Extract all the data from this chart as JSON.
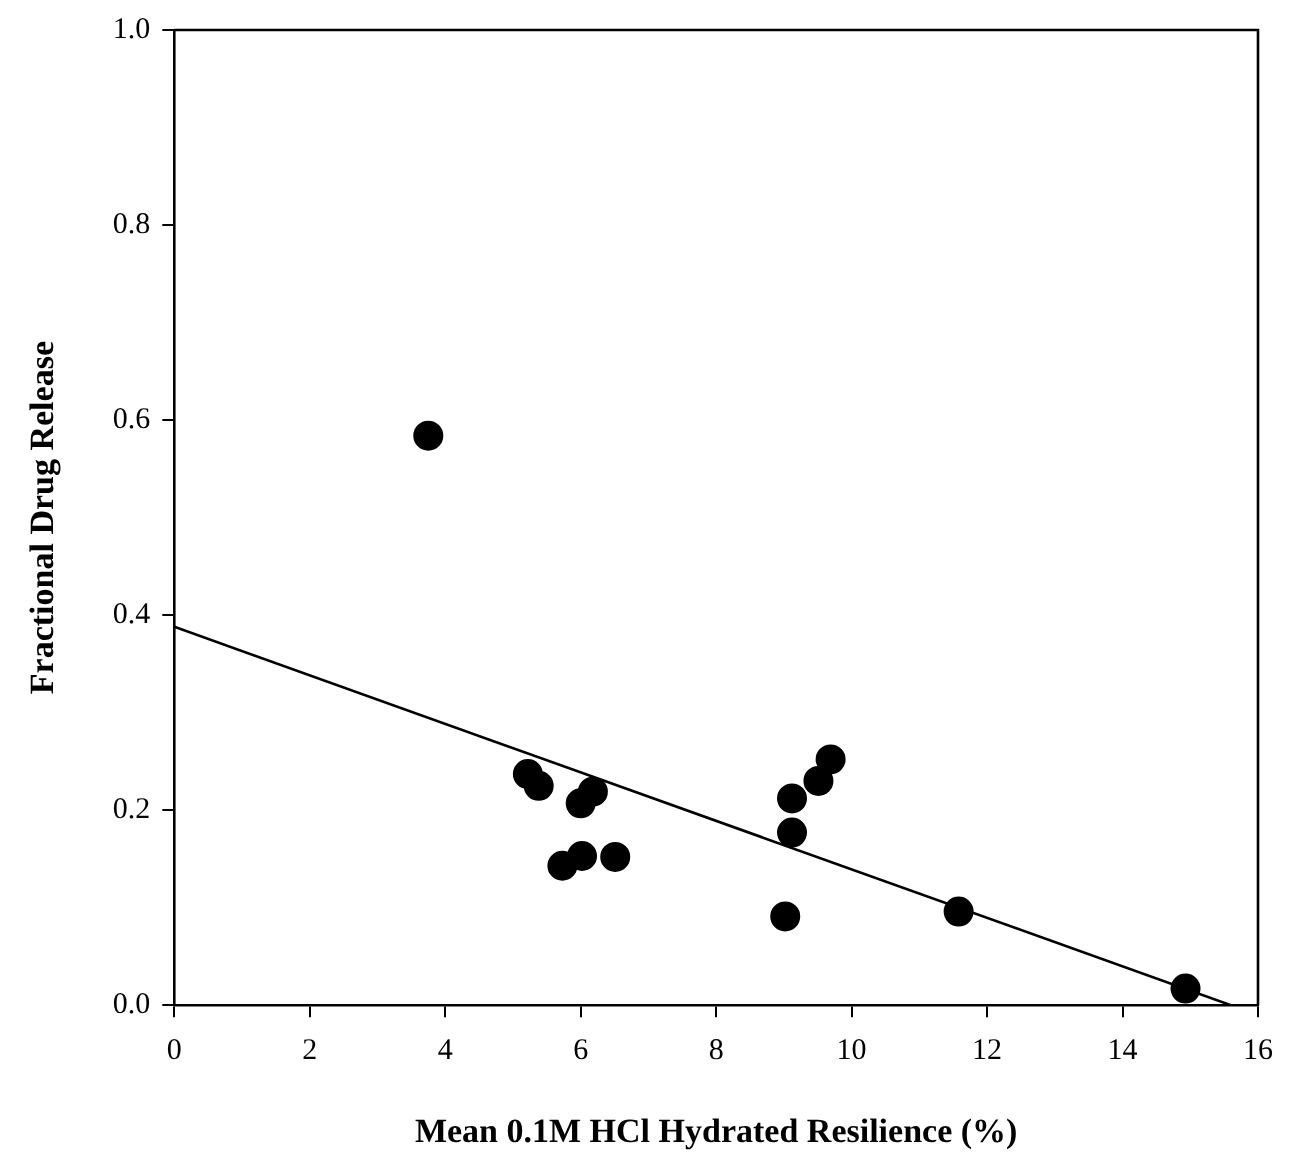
{
  "chart_data": {
    "type": "scatter",
    "xlabel": "Mean 0.1M HCl Hydrated Resilience (%)",
    "ylabel": "Fractional Drug Release",
    "xlim": [
      0,
      16
    ],
    "xticks": [
      0,
      2,
      4,
      6,
      8,
      10,
      12,
      14,
      16
    ],
    "ylim": [
      0,
      1
    ],
    "yticks": [
      {
        "value": 0,
        "label": "0.0"
      },
      0.2,
      0.4,
      0.6,
      0.8,
      {
        "value": 1,
        "label": "1.0"
      }
    ],
    "grid": false,
    "legend": false,
    "marker": "circle",
    "series": [
      {
        "color": "#000000",
        "x": [
          3.75,
          5.22,
          5.38,
          6.18,
          6.0,
          5.73,
          5.78,
          6.02,
          6.51,
          9.12,
          9.12,
          9.51,
          9.69,
          9.02,
          11.58,
          14.93
        ],
        "values": [
          0.584,
          0.237,
          0.225,
          0.219,
          0.207,
          0.143,
          null,
          0.153,
          0.152,
          0.212,
          0.177,
          0.23,
          0.252,
          0.091,
          0.096,
          0.017
        ]
      },
      {
        "type": "line",
        "marker": "none",
        "color": "#000000",
        "x": [
          0,
          15.6
        ],
        "values": [
          0.388,
          0
        ]
      }
    ]
  }
}
